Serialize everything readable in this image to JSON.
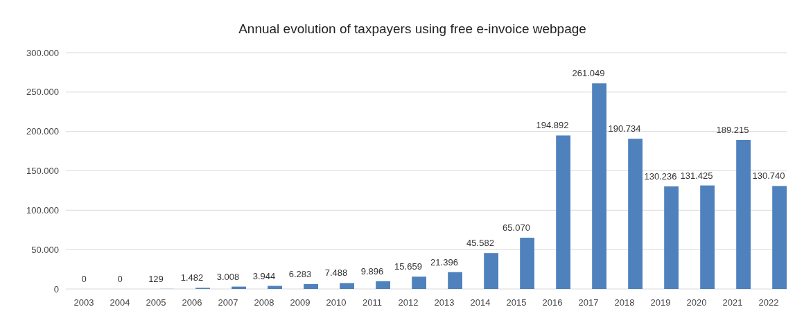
{
  "chart_data": {
    "type": "bar",
    "title": "Annual evolution of taxpayers using free e-invoice webpage",
    "categories": [
      "2003",
      "2004",
      "2005",
      "2006",
      "2007",
      "2008",
      "2009",
      "2010",
      "2011",
      "2012",
      "2013",
      "2014",
      "2015",
      "2016",
      "2017",
      "2018",
      "2019",
      "2020",
      "2021",
      "2022"
    ],
    "values": [
      0,
      0,
      129,
      1482,
      3008,
      3944,
      6283,
      7488,
      9896,
      15659,
      21396,
      45582,
      65070,
      194892,
      261049,
      190734,
      130236,
      131425,
      189215,
      130740
    ],
    "value_labels": [
      "0",
      "0",
      "129",
      "1.482",
      "3.008",
      "3.944",
      "6.283",
      "7.488",
      "9.896",
      "15.659",
      "21.396",
      "45.582",
      "65.070",
      "194.892",
      "261.049",
      "190.734",
      "130.236",
      "131.425",
      "189.215",
      "130.740"
    ],
    "color": "#4f81bd",
    "ylim": [
      0,
      300000
    ],
    "yticks": [
      {
        "value": 0,
        "label": "0"
      },
      {
        "value": 50000,
        "label": "50.000"
      },
      {
        "value": 100000,
        "label": "100.000"
      },
      {
        "value": 150000,
        "label": "150.000"
      },
      {
        "value": 200000,
        "label": "200.000"
      },
      {
        "value": 250000,
        "label": "250.000"
      },
      {
        "value": 300000,
        "label": "300.000"
      }
    ],
    "grid": "y"
  }
}
